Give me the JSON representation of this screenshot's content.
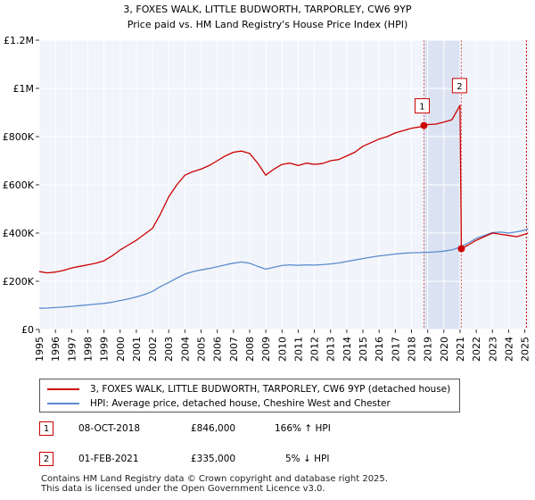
{
  "chart_data": {
    "type": "line",
    "title": "3, FOXES WALK, LITTLE BUDWORTH, TARPORLEY, CW6 9YP",
    "subtitle": "Price paid vs. HM Land Registry's House Price Index (HPI)",
    "xlim": [
      1995,
      2025.3
    ],
    "ylim": [
      0,
      1200000
    ],
    "y_ticks": [
      {
        "value": 0,
        "label": "£0"
      },
      {
        "value": 200000,
        "label": "£200K"
      },
      {
        "value": 400000,
        "label": "£400K"
      },
      {
        "value": 600000,
        "label": "£600K"
      },
      {
        "value": 800000,
        "label": "£800K"
      },
      {
        "value": 1000000,
        "label": "£1M"
      },
      {
        "value": 1200000,
        "label": "£1.2M"
      }
    ],
    "x_ticks": [
      "1995",
      "1996",
      "1997",
      "1998",
      "1999",
      "2000",
      "2001",
      "2002",
      "2003",
      "2004",
      "2005",
      "2006",
      "2007",
      "2008",
      "2009",
      "2010",
      "2011",
      "2012",
      "2013",
      "2014",
      "2015",
      "2016",
      "2017",
      "2018",
      "2019",
      "2020",
      "2021",
      "2022",
      "2023",
      "2024",
      "2025"
    ],
    "shaded_region": [
      2018.77,
      2021.08
    ],
    "series": [
      {
        "name": "3, FOXES WALK, LITTLE BUDWORTH, TARPORLEY, CW6 9YP (detached house)",
        "color": "#cc0000",
        "x": [
          1995,
          1995.5,
          1996,
          1996.5,
          1997,
          1997.5,
          1998,
          1998.5,
          1999,
          1999.5,
          2000,
          2000.5,
          2001,
          2001.5,
          2002,
          2002.5,
          2003,
          2003.5,
          2004,
          2004.5,
          2005,
          2005.5,
          2006,
          2006.5,
          2007,
          2007.5,
          2008,
          2008.5,
          2009,
          2009.5,
          2010,
          2010.5,
          2011,
          2011.5,
          2012,
          2012.5,
          2013,
          2013.5,
          2014,
          2014.5,
          2015,
          2015.5,
          2016,
          2016.5,
          2017,
          2017.5,
          2018,
          2018.5,
          2018.77,
          2019,
          2019.5,
          2020,
          2020.5,
          2021.0,
          2021.08,
          2021.5,
          2022,
          2022.5,
          2023,
          2023.5,
          2024,
          2024.5,
          2025,
          2025.2
        ],
        "y": [
          240000,
          235000,
          238000,
          245000,
          255000,
          262000,
          268000,
          275000,
          285000,
          305000,
          330000,
          350000,
          370000,
          395000,
          420000,
          480000,
          550000,
          600000,
          640000,
          655000,
          665000,
          680000,
          700000,
          720000,
          735000,
          740000,
          730000,
          690000,
          640000,
          665000,
          685000,
          690000,
          680000,
          690000,
          685000,
          688000,
          700000,
          705000,
          720000,
          735000,
          760000,
          775000,
          790000,
          800000,
          815000,
          825000,
          835000,
          840000,
          846000,
          850000,
          852000,
          860000,
          870000,
          930000,
          335000,
          350000,
          370000,
          385000,
          400000,
          395000,
          390000,
          385000,
          395000,
          400000
        ]
      },
      {
        "name": "HPI: Average price, detached house, Cheshire West and Chester",
        "color": "#5b8ccf",
        "x": [
          1995,
          1995.5,
          1996,
          1996.5,
          1997,
          1997.5,
          1998,
          1998.5,
          1999,
          1999.5,
          2000,
          2000.5,
          2001,
          2001.5,
          2002,
          2002.5,
          2003,
          2003.5,
          2004,
          2004.5,
          2005,
          2005.5,
          2006,
          2006.5,
          2007,
          2007.5,
          2008,
          2008.5,
          2009,
          2009.5,
          2010,
          2010.5,
          2011,
          2011.5,
          2012,
          2012.5,
          2013,
          2013.5,
          2014,
          2014.5,
          2015,
          2015.5,
          2016,
          2016.5,
          2017,
          2017.5,
          2018,
          2018.5,
          2019,
          2019.5,
          2020,
          2020.5,
          2021,
          2021.5,
          2022,
          2022.5,
          2023,
          2023.5,
          2024,
          2024.5,
          2025,
          2025.2
        ],
        "y": [
          88000,
          89000,
          91000,
          93000,
          96000,
          99000,
          102000,
          105000,
          108000,
          113000,
          120000,
          127000,
          135000,
          145000,
          158000,
          178000,
          195000,
          213000,
          230000,
          240000,
          247000,
          253000,
          260000,
          268000,
          275000,
          280000,
          275000,
          262000,
          250000,
          258000,
          265000,
          268000,
          266000,
          268000,
          267000,
          269000,
          272000,
          276000,
          282000,
          288000,
          294000,
          300000,
          305000,
          309000,
          313000,
          316000,
          318000,
          319000,
          320000,
          322000,
          325000,
          330000,
          342000,
          358000,
          378000,
          390000,
          402000,
          404000,
          400000,
          405000,
          412000,
          418000
        ]
      }
    ],
    "annotations": [
      {
        "label": "1",
        "x": 2018.77,
        "y": 846000
      },
      {
        "label": "2",
        "x": 2021.08,
        "y": 930000
      }
    ],
    "sale_points": [
      {
        "x": 2018.77,
        "y": 846000
      },
      {
        "x": 2021.08,
        "y": 335000
      }
    ]
  },
  "legend": {
    "property_label": "3, FOXES WALK, LITTLE BUDWORTH, TARPORLEY, CW6 9YP (detached house)",
    "hpi_label": "HPI: Average price, detached house, Cheshire West and Chester",
    "property_color": "#cc0000",
    "hpi_color": "#5b8ccf"
  },
  "sales": [
    {
      "marker": "1",
      "date": "08-OCT-2018",
      "price": "£846,000",
      "hpi_change": "166% ↑ HPI"
    },
    {
      "marker": "2",
      "date": "01-FEB-2021",
      "price": "£335,000",
      "hpi_change": "5% ↓ HPI"
    }
  ],
  "footer": {
    "line1": "Contains HM Land Registry data © Crown copyright and database right 2025.",
    "line2": "This data is licensed under the Open Government Licence v3.0."
  }
}
